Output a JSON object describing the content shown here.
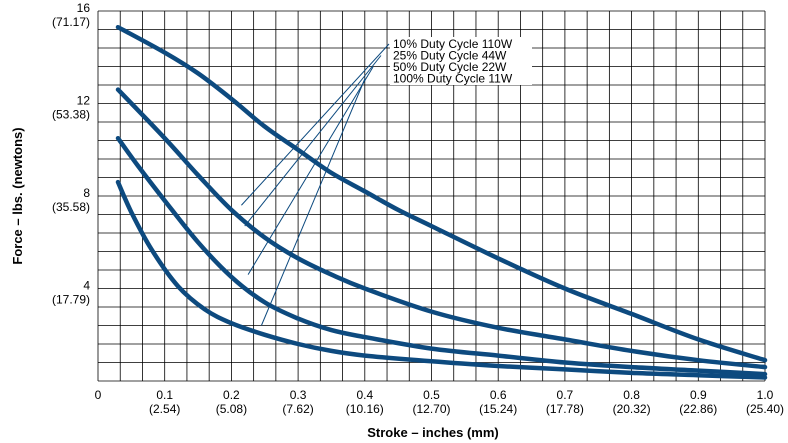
{
  "chart_data": {
    "type": "line",
    "xlabel": "Stroke – inches (mm)",
    "ylabel": "Force – lbs. (newtons)",
    "xlim": [
      0,
      1.0
    ],
    "ylim": [
      0,
      16
    ],
    "grid": true,
    "x_ticks": [
      {
        "value": 0,
        "label": "0",
        "sublabel": ""
      },
      {
        "value": 0.1,
        "label": "0.1",
        "sublabel": "(2.54)"
      },
      {
        "value": 0.2,
        "label": "0.2",
        "sublabel": "(5.08)"
      },
      {
        "value": 0.3,
        "label": "0.3",
        "sublabel": "(7.62)"
      },
      {
        "value": 0.4,
        "label": "0.4",
        "sublabel": "(10.16)"
      },
      {
        "value": 0.5,
        "label": "0.5",
        "sublabel": "(12.70)"
      },
      {
        "value": 0.6,
        "label": "0.6",
        "sublabel": "(15.24)"
      },
      {
        "value": 0.7,
        "label": "0.7",
        "sublabel": "(17.78)"
      },
      {
        "value": 0.8,
        "label": "0.8",
        "sublabel": "(20.32)"
      },
      {
        "value": 0.9,
        "label": "0.9",
        "sublabel": "(22.86)"
      },
      {
        "value": 1.0,
        "label": "1.0",
        "sublabel": "(25.40)"
      }
    ],
    "y_ticks": [
      {
        "value": 4,
        "label": "4",
        "sublabel": "(17.79)"
      },
      {
        "value": 8,
        "label": "8",
        "sublabel": "(35.58)"
      },
      {
        "value": 12,
        "label": "12",
        "sublabel": "(53.38)"
      },
      {
        "value": 16,
        "label": "16",
        "sublabel": "(71.17)"
      }
    ],
    "line_color": "#0d4a7f",
    "series": [
      {
        "name": "10% Duty Cycle 110W",
        "x": [
          0.03,
          0.1,
          0.15,
          0.2,
          0.25,
          0.3,
          0.35,
          0.4,
          0.45,
          0.5,
          0.6,
          0.7,
          0.8,
          0.9,
          1.0
        ],
        "y": [
          15.3,
          14.2,
          13.3,
          12.2,
          11.0,
          10.0,
          9.0,
          8.2,
          7.4,
          6.7,
          5.3,
          4.0,
          2.9,
          1.8,
          0.9
        ],
        "label_anchor": {
          "x": 0.215,
          "y": 7.6
        }
      },
      {
        "name": "25% Duty Cycle 44W",
        "x": [
          0.03,
          0.1,
          0.15,
          0.2,
          0.25,
          0.3,
          0.35,
          0.4,
          0.5,
          0.6,
          0.7,
          0.8,
          0.9,
          1.0
        ],
        "y": [
          12.6,
          10.5,
          8.9,
          7.4,
          6.2,
          5.3,
          4.6,
          4.0,
          3.0,
          2.3,
          1.8,
          1.3,
          0.9,
          0.6
        ],
        "label_anchor": {
          "x": 0.22,
          "y": 6.7
        }
      },
      {
        "name": "50% Duty Cycle 22W",
        "x": [
          0.03,
          0.06,
          0.1,
          0.15,
          0.2,
          0.25,
          0.3,
          0.35,
          0.4,
          0.5,
          0.6,
          0.7,
          0.8,
          0.9,
          1.0
        ],
        "y": [
          10.5,
          9.3,
          7.8,
          6.0,
          4.5,
          3.4,
          2.7,
          2.2,
          1.9,
          1.4,
          1.1,
          0.8,
          0.6,
          0.45,
          0.3
        ],
        "label_anchor": {
          "x": 0.225,
          "y": 4.6
        }
      },
      {
        "name": "100% Duty Cycle 11W",
        "x": [
          0.03,
          0.05,
          0.08,
          0.12,
          0.16,
          0.2,
          0.25,
          0.3,
          0.35,
          0.4,
          0.5,
          0.6,
          0.7,
          0.8,
          0.9,
          1.0
        ],
        "y": [
          8.6,
          7.3,
          5.7,
          4.1,
          3.1,
          2.5,
          2.0,
          1.6,
          1.3,
          1.1,
          0.85,
          0.65,
          0.5,
          0.35,
          0.25,
          0.15
        ],
        "label_anchor": {
          "x": 0.245,
          "y": 2.4
        }
      }
    ]
  }
}
